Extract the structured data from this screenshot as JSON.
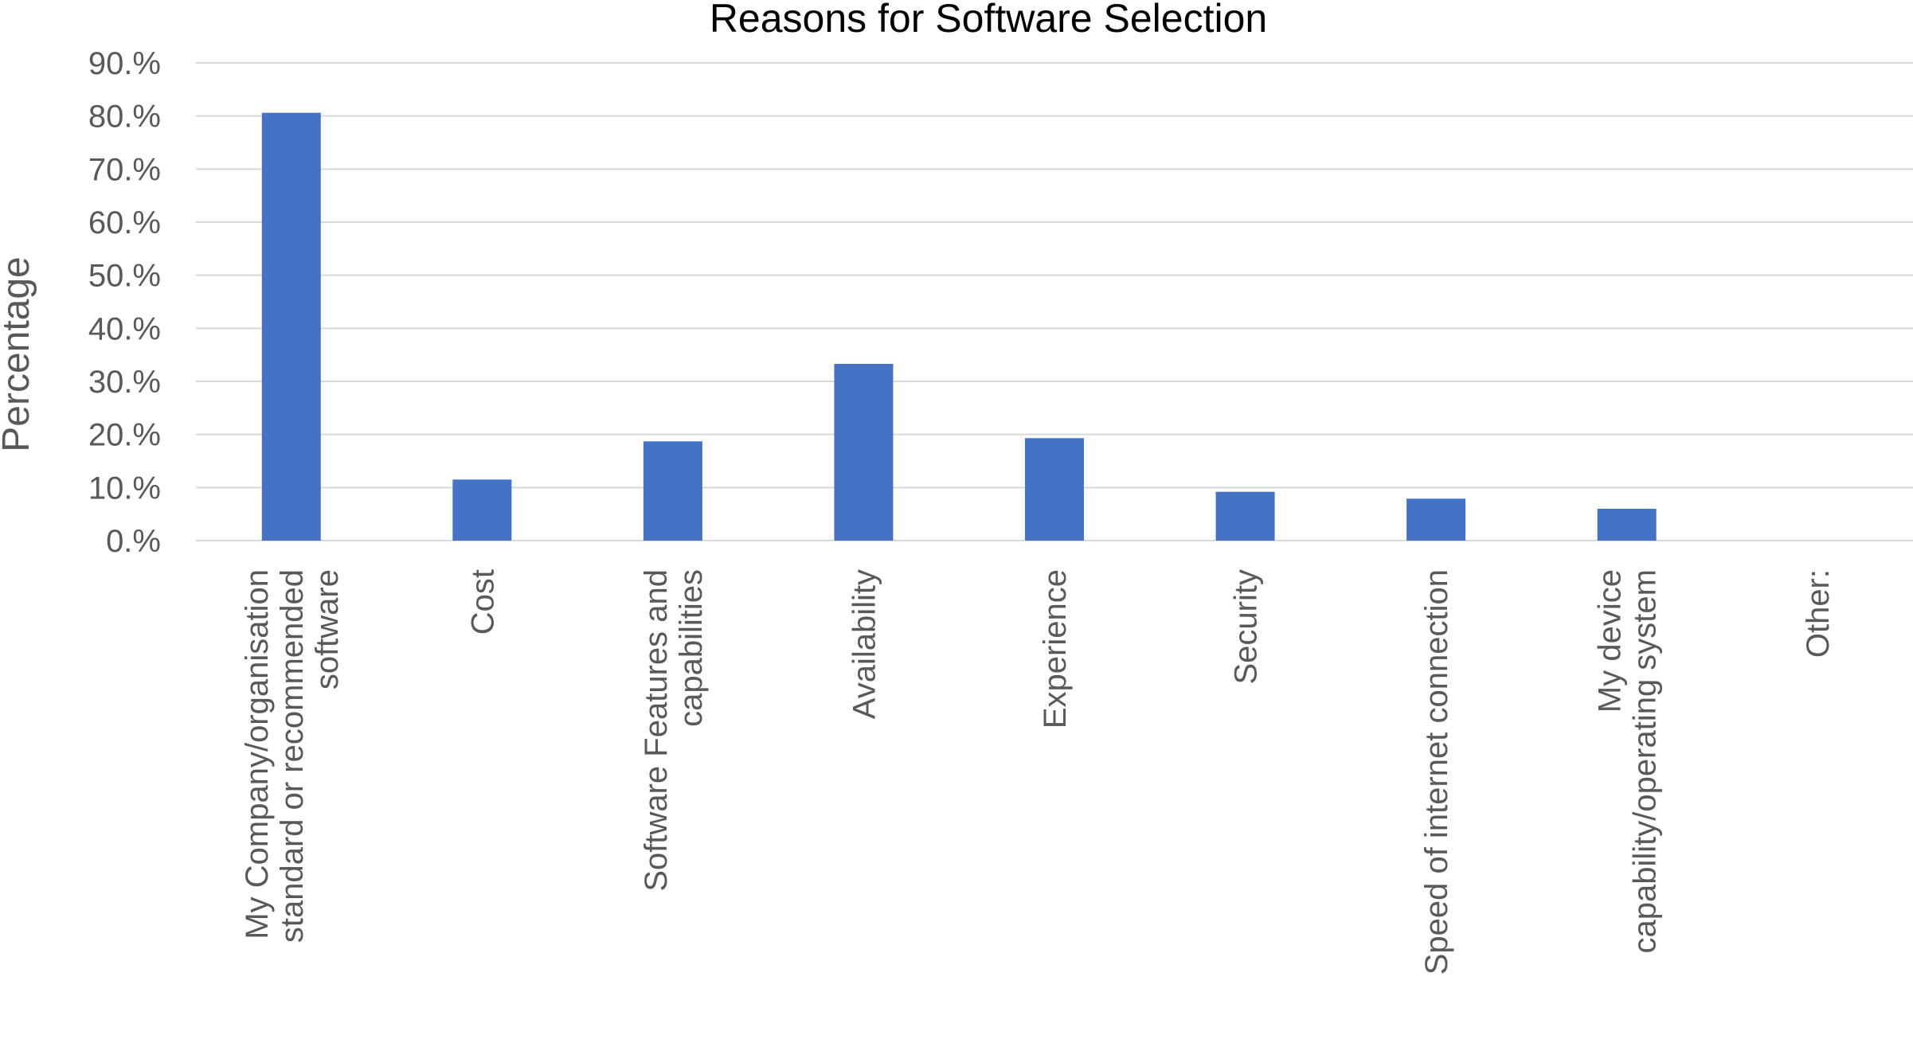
{
  "chart_data": {
    "type": "bar",
    "title": "Reasons for Software Selection",
    "xlabel": "",
    "ylabel": "Percentage",
    "ylim": [
      0,
      90
    ],
    "yticks": [
      "0.%",
      "10.%",
      "20.%",
      "30.%",
      "40.%",
      "50.%",
      "60.%",
      "70.%",
      "80.%",
      "90.%"
    ],
    "grid": true,
    "bar_color": "#4472c4",
    "categories": [
      [
        "My Company/organisation",
        "standard or recommended",
        "software"
      ],
      [
        "Cost"
      ],
      [
        "Software Features and",
        "capabilities"
      ],
      [
        "Availability"
      ],
      [
        "Experience"
      ],
      [
        "Security"
      ],
      [
        "Speed of internet connection"
      ],
      [
        "My device",
        "capability/operating system"
      ],
      [
        "Other:"
      ]
    ],
    "values": [
      80.6,
      11.5,
      18.7,
      33.3,
      19.3,
      9.2,
      7.9,
      6.0,
      0
    ]
  }
}
